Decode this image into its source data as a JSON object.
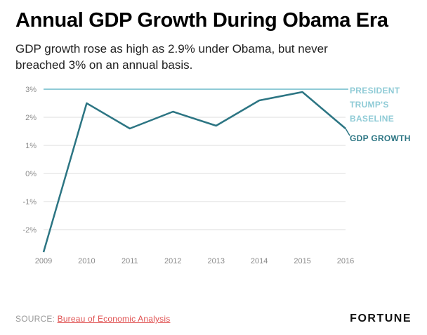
{
  "header": {
    "title": "Annual GDP Growth During Obama Era",
    "subtitle": "GDP growth rose as high as 2.9% under Obama, but never breached 3% on an annual basis."
  },
  "chart_data": {
    "type": "line",
    "title": "Annual GDP Growth During Obama Era",
    "x": [
      2009,
      2010,
      2011,
      2012,
      2013,
      2014,
      2015,
      2016
    ],
    "series": [
      {
        "name": "GDP GROWTH",
        "values": [
          -2.8,
          2.5,
          1.6,
          2.2,
          1.7,
          2.6,
          2.9,
          1.6
        ],
        "color": "#2c7583"
      },
      {
        "name": "PRESIDENT TRUMP'S BASELINE",
        "values": [
          3,
          3,
          3,
          3,
          3,
          3,
          3,
          3
        ],
        "color": "#8fcbd6"
      }
    ],
    "ylim": [
      -3,
      3.2
    ],
    "yticks": [
      3,
      2,
      1,
      0,
      -1,
      -2
    ],
    "ytick_labels": [
      "3%",
      "2%",
      "1%",
      "0%",
      "-1%",
      "-2%"
    ],
    "xlabel": "",
    "ylabel": "",
    "grid": true,
    "legend_position": "right-annotations",
    "annotations": {
      "baseline_label": "PRESIDENT TRUMP'S BASELINE",
      "line_label": "GDP GROWTH"
    },
    "axis_text_color": "#8a8a8a",
    "grid_color": "#dddddd"
  },
  "footer": {
    "source_prefix": "SOURCE: ",
    "source_link": "Bureau of Economic Analysis",
    "brand": "FORTUNE"
  }
}
